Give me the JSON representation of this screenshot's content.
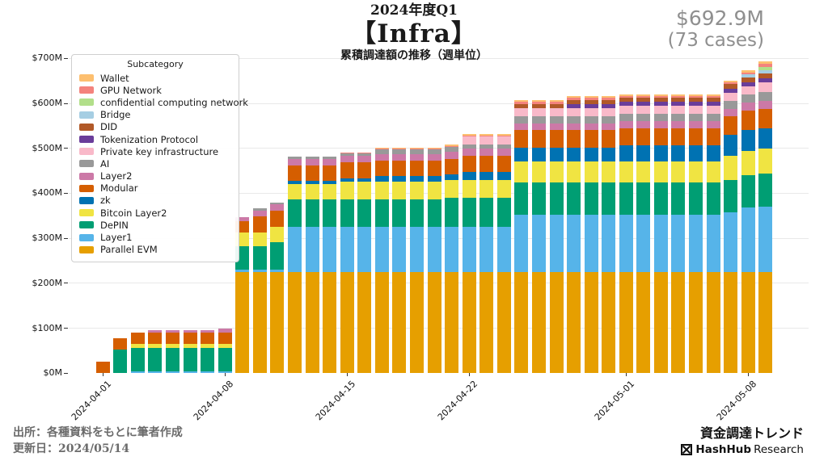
{
  "header": {
    "fiscal_label": "2024年度Q1",
    "category": "【Infra】",
    "subtitle": "累積調達額の推移（週単位）"
  },
  "stats": {
    "total": "$692.9M",
    "cases": "(73 cases)"
  },
  "footer": {
    "source": "出所：各種資料をもとに筆者作成",
    "updated": "更新日：2024/05/14",
    "trend_label": "資金調達トレンド",
    "brand_bold": "HashHub",
    "brand_regular": "Research"
  },
  "chart_data": {
    "type": "bar",
    "stacked": true,
    "title": "累積調達額の推移（週単位）",
    "unit": "$M",
    "ylim": [
      0,
      700
    ],
    "y_tick_step": 100,
    "y_tick_labels": [
      "$0M",
      "$100M",
      "$200M",
      "$300M",
      "$400M",
      "$500M",
      "$600M",
      "$700M"
    ],
    "grid": true,
    "legend_title": "Subcategory",
    "legend_position": "upper-left",
    "x": [
      "2024-04-01",
      "2024-04-02",
      "2024-04-03",
      "2024-04-04",
      "2024-04-05",
      "2024-04-06",
      "2024-04-07",
      "2024-04-08",
      "2024-04-09",
      "2024-04-10",
      "2024-04-11",
      "2024-04-12",
      "2024-04-13",
      "2024-04-14",
      "2024-04-15",
      "2024-04-16",
      "2024-04-17",
      "2024-04-18",
      "2024-04-19",
      "2024-04-20",
      "2024-04-21",
      "2024-04-22",
      "2024-04-23",
      "2024-04-24",
      "2024-04-25",
      "2024-04-26",
      "2024-04-27",
      "2024-04-28",
      "2024-04-29",
      "2024-04-30",
      "2024-05-01",
      "2024-05-02",
      "2024-05-03",
      "2024-05-04",
      "2024-05-05",
      "2024-05-06",
      "2024-05-07",
      "2024-05-08",
      "2024-05-09"
    ],
    "x_tick_indices": [
      0,
      7,
      14,
      21,
      30,
      37
    ],
    "x_tick_labels": [
      "2024-04-01",
      "2024-04-08",
      "2024-04-15",
      "2024-04-22",
      "2024-05-01",
      "2024-05-08"
    ],
    "series_bottom_to_top": [
      {
        "name": "Parallel EVM",
        "color": "#E69F00",
        "values": [
          0,
          0,
          0,
          0,
          0,
          0,
          0,
          0,
          225,
          225,
          225,
          225,
          225,
          225,
          225,
          225,
          225,
          225,
          225,
          225,
          225,
          225,
          225,
          225,
          225,
          225,
          225,
          225,
          225,
          225,
          225,
          225,
          225,
          225,
          225,
          225,
          225,
          225,
          225
        ]
      },
      {
        "name": "Layer1",
        "color": "#56B4E9",
        "values": [
          0,
          0,
          4,
          4,
          4,
          4,
          4,
          4,
          6,
          6,
          6,
          101,
          101,
          101,
          101,
          101,
          101,
          101,
          101,
          101,
          101,
          101,
          101,
          101,
          128,
          128,
          128,
          128,
          128,
          128,
          128,
          128,
          128,
          128,
          128,
          128,
          132,
          143,
          146
        ]
      },
      {
        "name": "DePIN",
        "color": "#009E73",
        "values": [
          0,
          52,
          52,
          52,
          52,
          52,
          52,
          52,
          52,
          52,
          60,
          60,
          60,
          60,
          60,
          60,
          60,
          60,
          60,
          60,
          64,
          64,
          64,
          64,
          72,
          72,
          72,
          72,
          72,
          72,
          72,
          72,
          72,
          72,
          72,
          72,
          72,
          72,
          73
        ]
      },
      {
        "name": "Bitcoin Layer2",
        "color": "#F0E442",
        "values": [
          0,
          0,
          9,
          9,
          9,
          9,
          9,
          9,
          30,
          30,
          35,
          35,
          35,
          35,
          40,
          40,
          40,
          40,
          40,
          40,
          40,
          40,
          40,
          40,
          45,
          45,
          45,
          45,
          45,
          45,
          45,
          45,
          45,
          45,
          45,
          45,
          55,
          55,
          55
        ]
      },
      {
        "name": "zk",
        "color": "#0072B2",
        "values": [
          0,
          0,
          0,
          0,
          0,
          0,
          0,
          0,
          0,
          0,
          0,
          6,
          6,
          6,
          8,
          8,
          12,
          12,
          12,
          12,
          12,
          18,
          18,
          18,
          32,
          32,
          32,
          32,
          32,
          32,
          36,
          36,
          36,
          36,
          36,
          36,
          46,
          46,
          46
        ]
      },
      {
        "name": "Modular",
        "color": "#D55E00",
        "values": [
          25,
          25,
          25,
          25,
          25,
          25,
          25,
          25,
          25,
          35,
          35,
          35,
          35,
          35,
          35,
          35,
          35,
          35,
          35,
          35,
          35,
          35,
          35,
          35,
          38,
          38,
          38,
          38,
          38,
          38,
          38,
          38,
          38,
          38,
          38,
          38,
          42,
          42,
          42
        ]
      },
      {
        "name": "Layer2",
        "color": "#CC79A7",
        "values": [
          0,
          0,
          0,
          5,
          5,
          5,
          5,
          9,
          9,
          14,
          14,
          14,
          14,
          14,
          14,
          14,
          14,
          14,
          14,
          14,
          16,
          16,
          16,
          16,
          16,
          16,
          16,
          16,
          16,
          16,
          16,
          16,
          16,
          16,
          16,
          16,
          16,
          19,
          19
        ]
      },
      {
        "name": "AI",
        "color": "#999999",
        "values": [
          0,
          0,
          0,
          0,
          0,
          0,
          0,
          0,
          0,
          5,
          5,
          5,
          5,
          5,
          5,
          5,
          10,
          10,
          10,
          10,
          10,
          10,
          10,
          10,
          16,
          16,
          16,
          16,
          16,
          16,
          16,
          16,
          16,
          16,
          16,
          16,
          17,
          18,
          19
        ]
      },
      {
        "name": "Private key infrastructure",
        "color": "#F9B9C9",
        "values": [
          0,
          0,
          0,
          0,
          0,
          0,
          0,
          0,
          0,
          0,
          0,
          0,
          0,
          0,
          0,
          0,
          0,
          0,
          0,
          0,
          0,
          18,
          18,
          18,
          18,
          18,
          18,
          18,
          18,
          18,
          18,
          18,
          18,
          18,
          18,
          18,
          18,
          18,
          21
        ]
      },
      {
        "name": "Tokenization Protocol",
        "color": "#6A3D9A",
        "values": [
          0,
          0,
          0,
          0,
          0,
          0,
          0,
          0,
          0,
          0,
          0,
          0,
          0,
          0,
          0,
          0,
          0,
          0,
          0,
          0,
          0,
          0,
          0,
          0,
          0,
          0,
          0,
          9,
          9,
          9,
          9,
          9,
          9,
          9,
          9,
          9,
          9,
          9,
          9
        ]
      },
      {
        "name": "DID",
        "color": "#B15928",
        "values": [
          0,
          0,
          0,
          0,
          0,
          0,
          0,
          0,
          0,
          0,
          0,
          0,
          0,
          0,
          0,
          0,
          0,
          0,
          0,
          0,
          0,
          0,
          0,
          0,
          9,
          9,
          9,
          9,
          9,
          9,
          9,
          9,
          9,
          9,
          9,
          9,
          11,
          11,
          11
        ]
      },
      {
        "name": "Bridge",
        "color": "#A6CEE3",
        "values": [
          0,
          0,
          0,
          0,
          0,
          0,
          0,
          0,
          0,
          0,
          0,
          0,
          0,
          0,
          0,
          0,
          0,
          0,
          0,
          0,
          0,
          0,
          0,
          0,
          0,
          0,
          0,
          0,
          0,
          0,
          0,
          0,
          0,
          0,
          0,
          0,
          0,
          7,
          7
        ]
      },
      {
        "name": "confidential computing network",
        "color": "#B2DF8A",
        "values": [
          0,
          0,
          0,
          0,
          0,
          0,
          0,
          0,
          0,
          0,
          0,
          0,
          0,
          0,
          0,
          0,
          0,
          0,
          0,
          0,
          0,
          0,
          0,
          0,
          0,
          0,
          0,
          0,
          0,
          0,
          0,
          0,
          0,
          0,
          0,
          0,
          0,
          0,
          8
        ]
      },
      {
        "name": "GPU Network",
        "color": "#F4837D",
        "values": [
          0,
          0,
          0,
          0,
          0,
          0,
          0,
          0,
          0,
          0,
          0,
          0,
          0,
          0,
          2,
          2,
          2,
          2,
          2,
          2,
          2,
          2,
          2,
          2,
          4,
          4,
          4,
          4,
          4,
          4,
          4,
          4,
          4,
          4,
          4,
          4,
          4,
          4,
          7
        ]
      },
      {
        "name": "Wallet",
        "color": "#FDBF6F",
        "values": [
          0,
          0,
          0,
          0,
          0,
          0,
          0,
          0,
          0,
          0,
          0,
          0,
          0,
          0,
          0,
          0,
          3,
          3,
          3,
          3,
          3,
          3,
          3,
          3,
          4,
          4,
          4,
          4,
          4,
          4,
          4,
          4,
          4,
          4,
          4,
          4,
          4,
          4,
          5
        ]
      }
    ],
    "legend_order_top_to_bottom": [
      "Wallet",
      "GPU Network",
      "confidential computing network",
      "Bridge",
      "DID",
      "Tokenization Protocol",
      "Private key infrastructure",
      "AI",
      "Layer2",
      "Modular",
      "zk",
      "Bitcoin Layer2",
      "DePIN",
      "Layer1",
      "Parallel EVM"
    ]
  }
}
